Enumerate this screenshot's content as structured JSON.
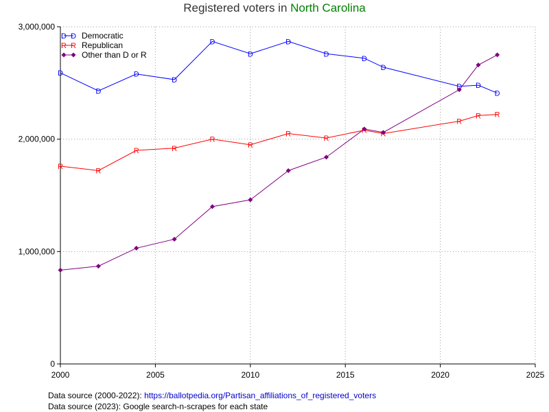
{
  "chart_data": {
    "type": "line",
    "title_prefix": "Registered voters in ",
    "title_highlight": "North Carolina",
    "title_highlight_color": "#008000",
    "xlim": [
      2000,
      2025
    ],
    "ylim": [
      0,
      3000000
    ],
    "x_ticks": [
      {
        "value": 2000,
        "label": "2000"
      },
      {
        "value": 2005,
        "label": "2005"
      },
      {
        "value": 2010,
        "label": "2010"
      },
      {
        "value": 2015,
        "label": "2015"
      },
      {
        "value": 2020,
        "label": "2020"
      },
      {
        "value": 2025,
        "label": "2025"
      }
    ],
    "y_ticks": [
      {
        "value": 0,
        "label": "0"
      },
      {
        "value": 1000000,
        "label": "1,000,000"
      },
      {
        "value": 2000000,
        "label": "2,000,000"
      },
      {
        "value": 3000000,
        "label": "3,000,000"
      }
    ],
    "grid": true,
    "legend_position": "top-left",
    "series": [
      {
        "name": "Democratic",
        "marker": "D",
        "color": "#0000ff",
        "x": [
          2000,
          2002,
          2004,
          2006,
          2008,
          2010,
          2012,
          2014,
          2016,
          2017,
          2021,
          2022,
          2023
        ],
        "y": [
          2590000,
          2430000,
          2580000,
          2530000,
          2870000,
          2760000,
          2870000,
          2760000,
          2720000,
          2640000,
          2470000,
          2480000,
          2410000
        ]
      },
      {
        "name": "Republican",
        "marker": "R",
        "color": "#ff0000",
        "x": [
          2000,
          2002,
          2004,
          2006,
          2008,
          2010,
          2012,
          2014,
          2016,
          2017,
          2021,
          2022,
          2023
        ],
        "y": [
          1760000,
          1720000,
          1900000,
          1920000,
          2000000,
          1950000,
          2050000,
          2010000,
          2080000,
          2050000,
          2160000,
          2210000,
          2220000
        ]
      },
      {
        "name": "Other than D or R",
        "marker": "diamond",
        "color": "#800080",
        "x": [
          2000,
          2002,
          2004,
          2006,
          2008,
          2010,
          2012,
          2014,
          2016,
          2017,
          2021,
          2022,
          2023
        ],
        "y": [
          835000,
          870000,
          1030000,
          1110000,
          1400000,
          1460000,
          1720000,
          1840000,
          2090000,
          2060000,
          2440000,
          2660000,
          2750000
        ]
      }
    ]
  },
  "sources": {
    "line1_label": "Data source (2000-2022):",
    "line1_link": "https://ballotpedia.org/Partisan_affiliations_of_registered_voters",
    "line2": "Data source (2023): Google search-n-scrapes for each state"
  }
}
